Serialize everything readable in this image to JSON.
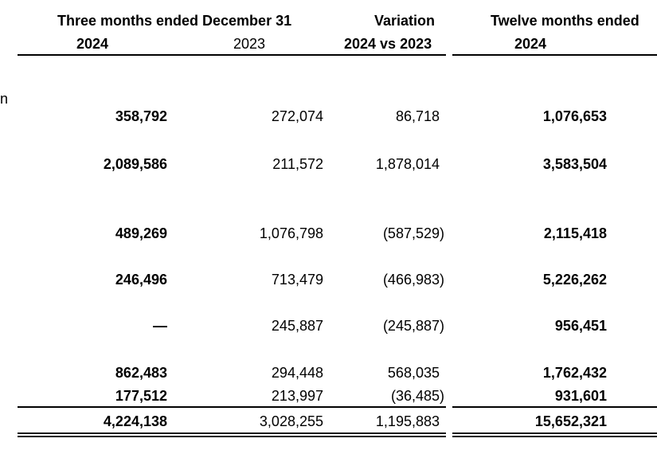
{
  "header": {
    "three_months_title": "Three months ended December 31",
    "variation_title": "Variation",
    "twelve_months_title": "Twelve months ended",
    "year_2024_a": "2024",
    "year_2023": "2023",
    "variation_sub": "2024 vs 2023",
    "year_2024_b": "2024"
  },
  "left_fragment": "n",
  "rows": [
    {
      "c2024": "358,792",
      "c2023": "272,074",
      "var": "86,718",
      "tw2024": "1,076,653"
    },
    {
      "c2024": "2,089,586",
      "c2023": "211,572",
      "var": "1,878,014",
      "tw2024": "3,583,504"
    },
    {
      "c2024": "489,269",
      "c2023": "1,076,798",
      "var": "(587,529)",
      "tw2024": "2,115,418"
    },
    {
      "c2024": "246,496",
      "c2023": "713,479",
      "var": "(466,983)",
      "tw2024": "5,226,262"
    },
    {
      "c2024": "—",
      "c2023": "245,887",
      "var": "(245,887)",
      "tw2024": "956,451"
    },
    {
      "c2024": "862,483",
      "c2023": "294,448",
      "var": "568,035",
      "tw2024": "1,762,432"
    },
    {
      "c2024": "177,512",
      "c2023": "213,997",
      "var": "(36,485)",
      "tw2024": "931,601"
    }
  ],
  "total": {
    "c2024": "4,224,138",
    "c2023": "3,028,255",
    "var": "1,195,883",
    "tw2024": "15,652,321"
  }
}
